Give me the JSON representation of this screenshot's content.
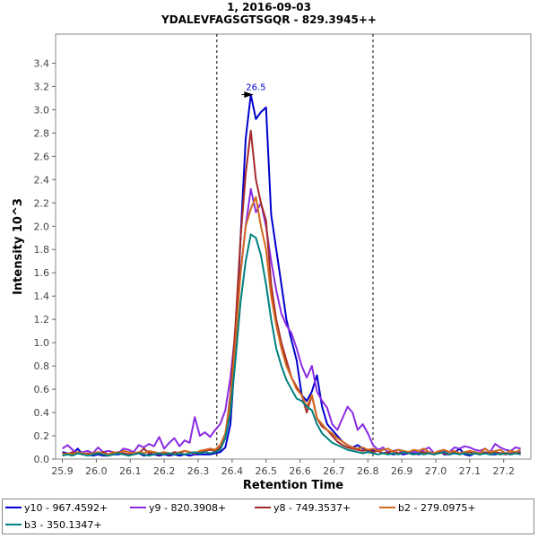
{
  "chart_data": {
    "type": "line",
    "title": "1, 2016-09-03",
    "subtitle": "YDALEVFAGSGTSGQR - 829.3945++",
    "xlabel": "Retention Time",
    "ylabel": "Intensity 10^3",
    "xlim": [
      25.88,
      27.28
    ],
    "ylim": [
      0,
      3.65
    ],
    "xticks": [
      25.9,
      26.0,
      26.1,
      26.2,
      26.3,
      26.4,
      26.5,
      26.6,
      26.7,
      26.8,
      26.9,
      27.0,
      27.1,
      27.2
    ],
    "yticks": [
      0.0,
      0.2,
      0.4,
      0.6,
      0.8,
      1.0,
      1.2,
      1.4,
      1.6,
      1.8,
      2.0,
      2.2,
      2.4,
      2.6,
      2.8,
      3.0,
      3.2,
      3.4
    ],
    "integration_bounds": [
      26.355,
      26.815
    ],
    "peak_annotation": {
      "label": "26.5",
      "x": 26.47,
      "y": 3.13
    },
    "legend_position": "bottom",
    "x": [
      25.9,
      25.915,
      25.93,
      25.945,
      25.96,
      25.975,
      25.99,
      26.005,
      26.02,
      26.035,
      26.05,
      26.065,
      26.08,
      26.095,
      26.11,
      26.125,
      26.14,
      26.155,
      26.17,
      26.185,
      26.2,
      26.215,
      26.23,
      26.245,
      26.26,
      26.275,
      26.29,
      26.305,
      26.32,
      26.335,
      26.35,
      26.365,
      26.38,
      26.395,
      26.41,
      26.425,
      26.44,
      26.455,
      26.47,
      26.485,
      26.5,
      26.515,
      26.53,
      26.545,
      26.56,
      26.575,
      26.59,
      26.605,
      26.62,
      26.635,
      26.65,
      26.665,
      26.68,
      26.695,
      26.71,
      26.725,
      26.74,
      26.755,
      26.77,
      26.785,
      26.8,
      26.815,
      26.83,
      26.845,
      26.86,
      26.875,
      26.89,
      26.905,
      26.92,
      26.935,
      26.95,
      26.965,
      26.98,
      26.995,
      27.01,
      27.025,
      27.04,
      27.055,
      27.07,
      27.085,
      27.1,
      27.115,
      27.13,
      27.145,
      27.16,
      27.175,
      27.19,
      27.205,
      27.22,
      27.235,
      27.25
    ],
    "series": [
      {
        "name": "y10 - 967.4592+",
        "color": "#0000cc",
        "values": [
          0.06,
          0.05,
          0.04,
          0.09,
          0.04,
          0.04,
          0.03,
          0.04,
          0.03,
          0.03,
          0.04,
          0.04,
          0.05,
          0.04,
          0.04,
          0.05,
          0.03,
          0.04,
          0.04,
          0.03,
          0.04,
          0.03,
          0.04,
          0.03,
          0.04,
          0.03,
          0.04,
          0.04,
          0.04,
          0.04,
          0.05,
          0.06,
          0.1,
          0.3,
          0.95,
          1.9,
          2.75,
          3.13,
          2.92,
          2.98,
          3.02,
          2.1,
          1.8,
          1.5,
          1.2,
          1.02,
          0.85,
          0.55,
          0.5,
          0.58,
          0.72,
          0.45,
          0.3,
          0.25,
          0.2,
          0.15,
          0.12,
          0.1,
          0.12,
          0.09,
          0.07,
          0.08,
          0.07,
          0.05,
          0.05,
          0.04,
          0.05,
          0.04,
          0.05,
          0.05,
          0.04,
          0.06,
          0.05,
          0.04,
          0.07,
          0.04,
          0.04,
          0.05,
          0.09,
          0.04,
          0.03,
          0.05,
          0.04,
          0.05,
          0.04,
          0.04,
          0.05,
          0.05,
          0.04,
          0.05,
          0.06
        ]
      },
      {
        "name": "y9 - 820.3908+",
        "color": "#8a2be2",
        "values": [
          0.09,
          0.12,
          0.08,
          0.05,
          0.06,
          0.07,
          0.05,
          0.1,
          0.06,
          0.07,
          0.06,
          0.05,
          0.09,
          0.08,
          0.06,
          0.12,
          0.1,
          0.13,
          0.11,
          0.19,
          0.09,
          0.14,
          0.18,
          0.11,
          0.16,
          0.14,
          0.36,
          0.2,
          0.23,
          0.19,
          0.25,
          0.3,
          0.42,
          0.7,
          1.1,
          1.6,
          2.0,
          2.32,
          2.12,
          2.2,
          2.0,
          1.7,
          1.45,
          1.25,
          1.15,
          1.08,
          0.95,
          0.8,
          0.7,
          0.8,
          0.58,
          0.5,
          0.44,
          0.3,
          0.25,
          0.35,
          0.45,
          0.4,
          0.25,
          0.3,
          0.22,
          0.12,
          0.08,
          0.1,
          0.06,
          0.07,
          0.08,
          0.05,
          0.06,
          0.07,
          0.05,
          0.08,
          0.1,
          0.05,
          0.06,
          0.07,
          0.06,
          0.1,
          0.09,
          0.11,
          0.1,
          0.08,
          0.07,
          0.09,
          0.06,
          0.13,
          0.1,
          0.08,
          0.07,
          0.1,
          0.09
        ]
      },
      {
        "name": "y8 - 749.3537+",
        "color": "#a52a2a",
        "values": [
          0.05,
          0.04,
          0.06,
          0.05,
          0.04,
          0.05,
          0.04,
          0.05,
          0.06,
          0.04,
          0.05,
          0.06,
          0.05,
          0.04,
          0.05,
          0.05,
          0.09,
          0.05,
          0.06,
          0.04,
          0.05,
          0.04,
          0.06,
          0.05,
          0.07,
          0.06,
          0.05,
          0.06,
          0.07,
          0.08,
          0.07,
          0.1,
          0.2,
          0.55,
          1.15,
          1.9,
          2.45,
          2.82,
          2.4,
          2.2,
          2.05,
          1.5,
          1.2,
          1.0,
          0.85,
          0.7,
          0.62,
          0.55,
          0.4,
          0.55,
          0.35,
          0.28,
          0.25,
          0.2,
          0.15,
          0.12,
          0.1,
          0.09,
          0.08,
          0.07,
          0.08,
          0.06,
          0.07,
          0.05,
          0.06,
          0.07,
          0.05,
          0.06,
          0.05,
          0.04,
          0.05,
          0.06,
          0.05,
          0.04,
          0.06,
          0.05,
          0.04,
          0.06,
          0.05,
          0.05,
          0.06,
          0.05,
          0.04,
          0.06,
          0.05,
          0.06,
          0.05,
          0.04,
          0.05,
          0.06,
          0.05
        ]
      },
      {
        "name": "b2 - 279.0975+",
        "color": "#d2691e",
        "values": [
          0.04,
          0.05,
          0.04,
          0.06,
          0.05,
          0.04,
          0.05,
          0.06,
          0.05,
          0.04,
          0.06,
          0.05,
          0.07,
          0.06,
          0.05,
          0.06,
          0.05,
          0.07,
          0.06,
          0.05,
          0.06,
          0.05,
          0.04,
          0.06,
          0.07,
          0.06,
          0.05,
          0.07,
          0.08,
          0.09,
          0.08,
          0.12,
          0.22,
          0.5,
          1.0,
          1.6,
          2.0,
          2.15,
          2.25,
          2.0,
          1.8,
          1.4,
          1.15,
          0.95,
          0.8,
          0.7,
          0.6,
          0.55,
          0.45,
          0.55,
          0.35,
          0.3,
          0.25,
          0.22,
          0.18,
          0.15,
          0.12,
          0.1,
          0.09,
          0.1,
          0.08,
          0.09,
          0.07,
          0.08,
          0.09,
          0.06,
          0.08,
          0.07,
          0.06,
          0.08,
          0.07,
          0.09,
          0.06,
          0.05,
          0.07,
          0.08,
          0.06,
          0.07,
          0.05,
          0.06,
          0.07,
          0.06,
          0.05,
          0.09,
          0.06,
          0.07,
          0.08,
          0.05,
          0.07,
          0.06,
          0.08
        ]
      },
      {
        "name": "b3 - 350.1347+",
        "color": "#008080",
        "values": [
          0.03,
          0.04,
          0.03,
          0.05,
          0.04,
          0.03,
          0.04,
          0.05,
          0.04,
          0.03,
          0.04,
          0.05,
          0.04,
          0.03,
          0.04,
          0.05,
          0.04,
          0.03,
          0.04,
          0.05,
          0.04,
          0.05,
          0.04,
          0.05,
          0.04,
          0.05,
          0.06,
          0.05,
          0.06,
          0.05,
          0.06,
          0.08,
          0.18,
          0.4,
          0.85,
          1.35,
          1.7,
          1.93,
          1.9,
          1.75,
          1.5,
          1.2,
          0.95,
          0.8,
          0.68,
          0.6,
          0.52,
          0.5,
          0.45,
          0.42,
          0.3,
          0.22,
          0.18,
          0.14,
          0.12,
          0.1,
          0.08,
          0.07,
          0.06,
          0.05,
          0.06,
          0.05,
          0.04,
          0.05,
          0.04,
          0.05,
          0.04,
          0.06,
          0.05,
          0.04,
          0.05,
          0.04,
          0.05,
          0.04,
          0.05,
          0.06,
          0.04,
          0.05,
          0.04,
          0.05,
          0.04,
          0.05,
          0.04,
          0.05,
          0.04,
          0.05,
          0.04,
          0.05,
          0.04,
          0.05,
          0.04
        ]
      }
    ]
  }
}
